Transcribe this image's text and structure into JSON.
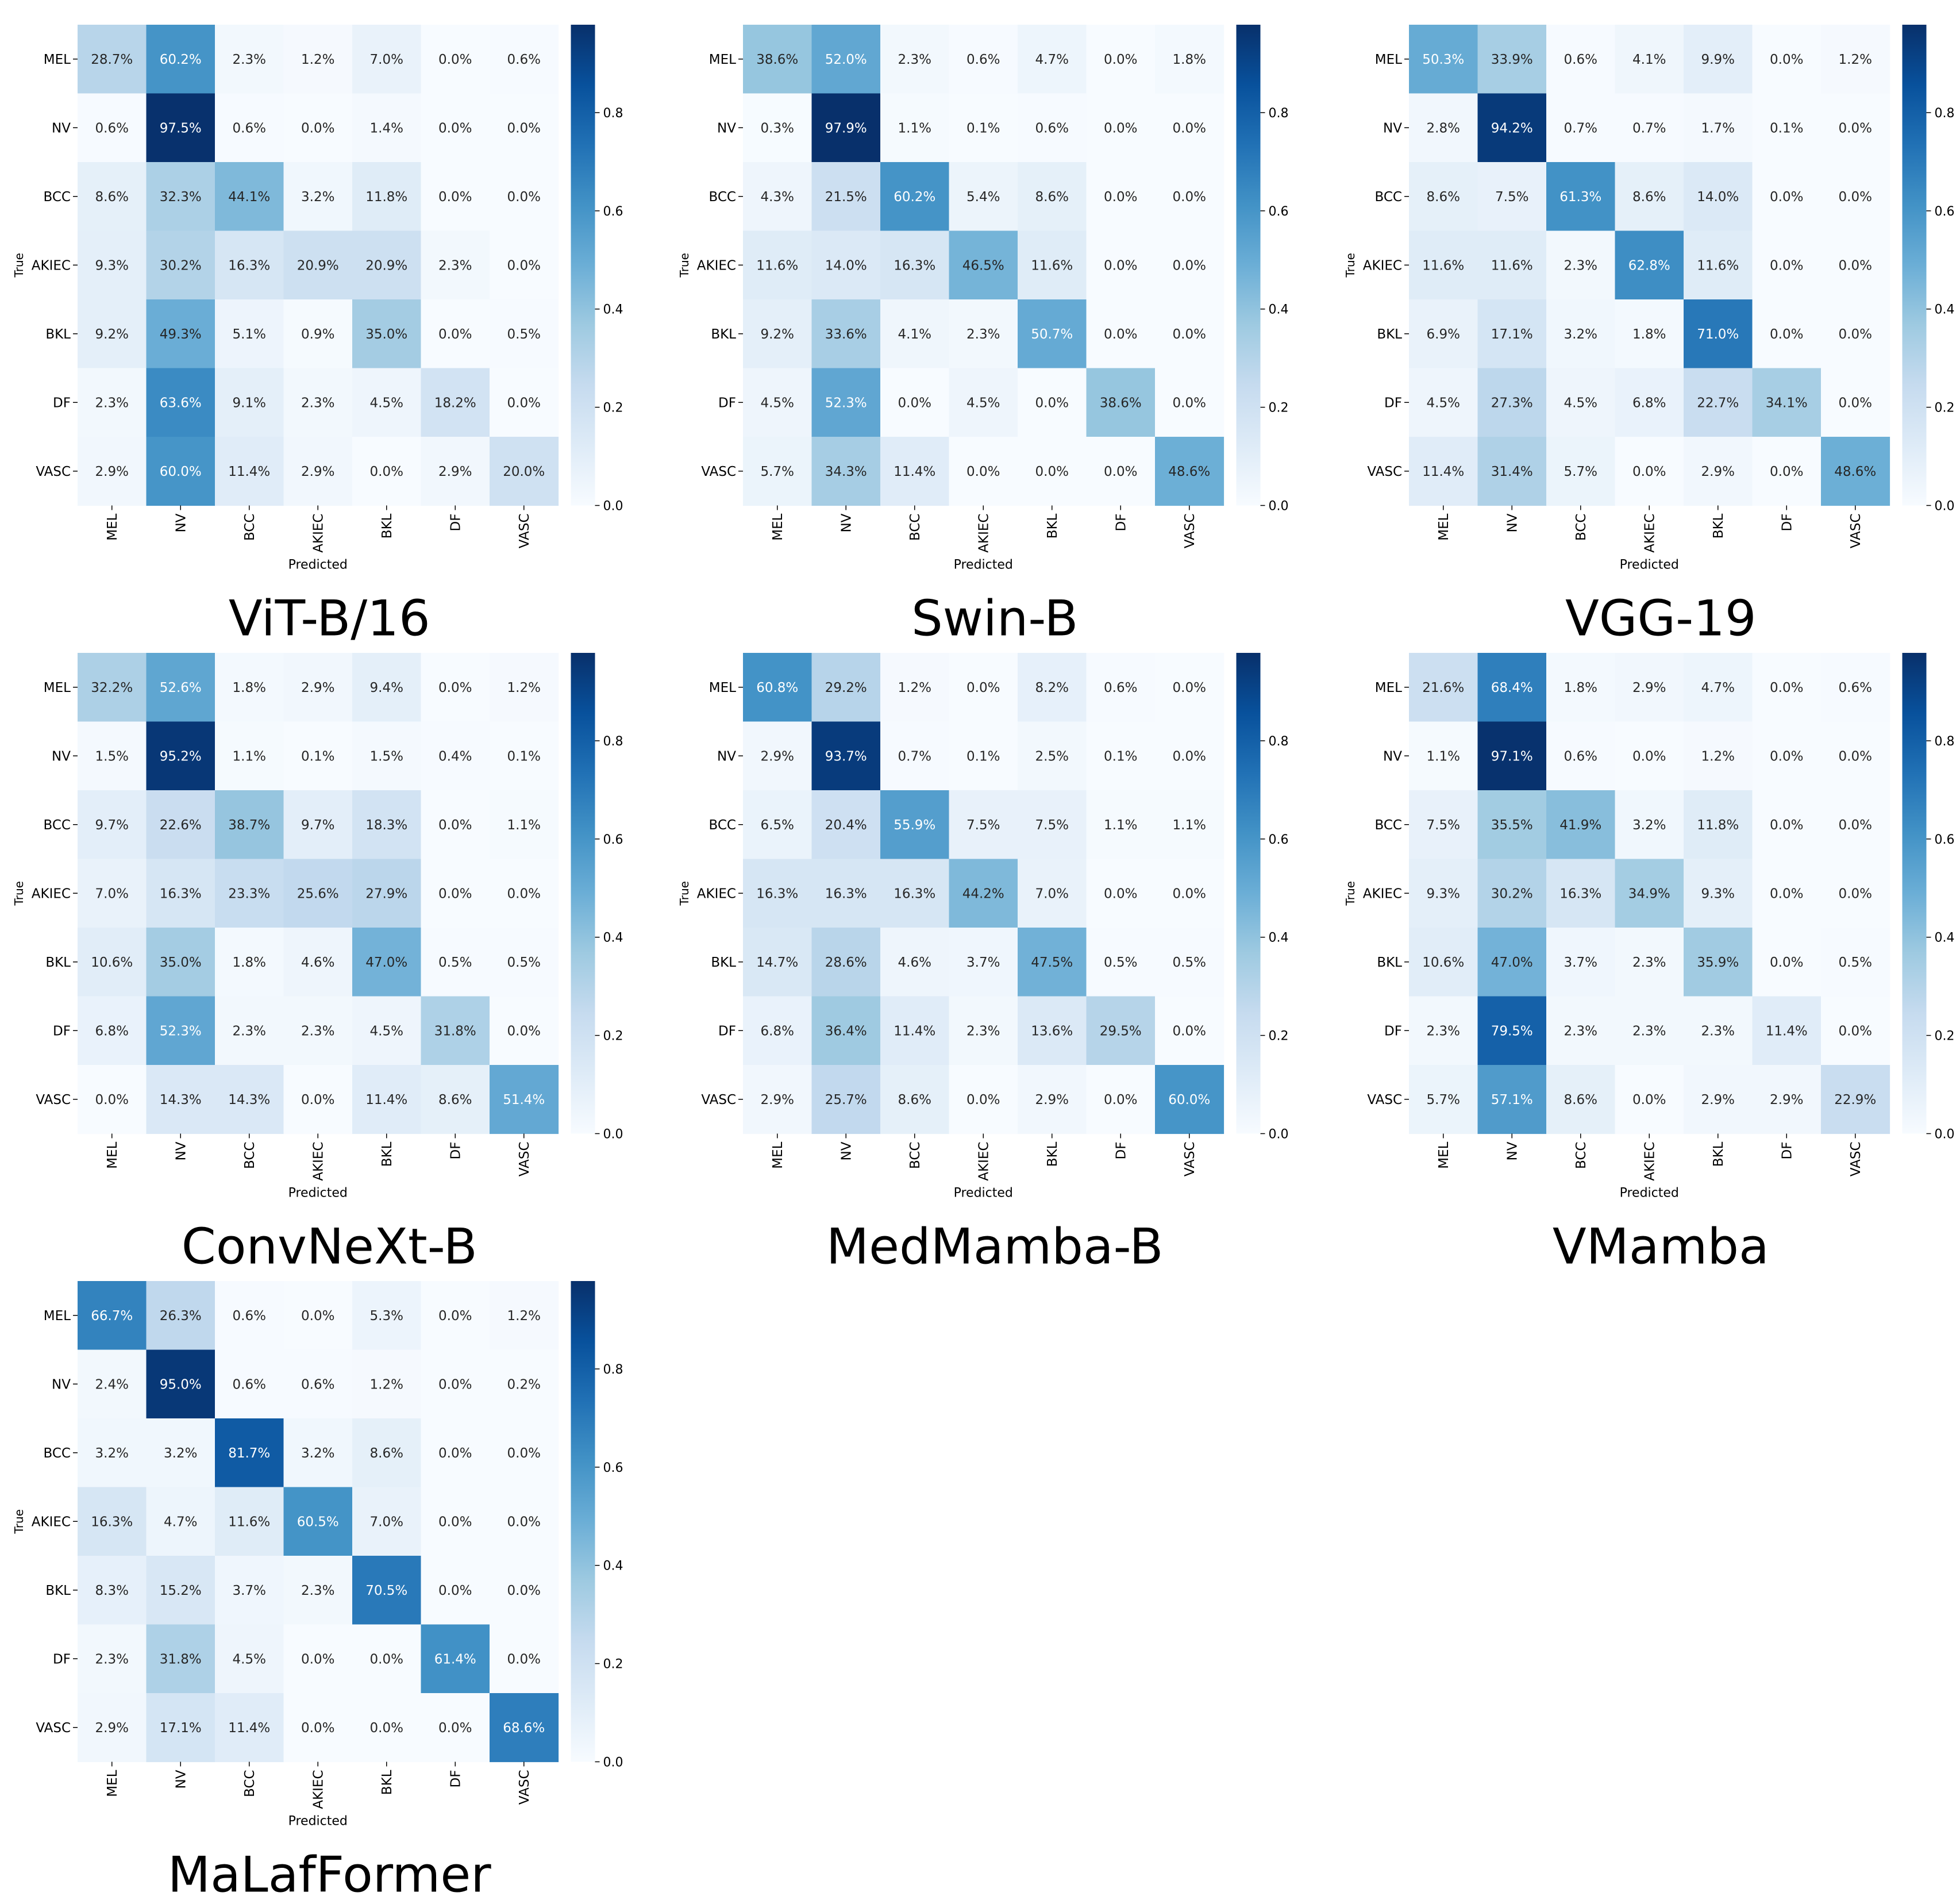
{
  "figure": {
    "cbar_ticks": [
      "0.0",
      "0.2",
      "0.4",
      "0.6",
      "0.8"
    ],
    "cbar_tick_values": [
      0.0,
      0.2,
      0.4,
      0.6,
      0.8
    ],
    "colormap": [
      "#f7fbff",
      "#deebf7",
      "#c6dbef",
      "#9ecae1",
      "#6baed6",
      "#4292c6",
      "#2171b5",
      "#08519c",
      "#08306b"
    ],
    "vmax": 0.979
  },
  "chart_data": [
    {
      "type": "heatmap",
      "title": "ViT-B/16",
      "xlabel": "Predicted",
      "ylabel": "True",
      "labels": [
        "MEL",
        "NV",
        "BCC",
        "AKIEC",
        "BKL",
        "DF",
        "VASC"
      ],
      "values": [
        [
          "28.7%",
          "60.2%",
          "2.3%",
          "1.2%",
          "7.0%",
          "0.0%",
          "0.6%"
        ],
        [
          "0.6%",
          "97.5%",
          "0.6%",
          "0.0%",
          "1.4%",
          "0.0%",
          "0.0%"
        ],
        [
          "8.6%",
          "32.3%",
          "44.1%",
          "3.2%",
          "11.8%",
          "0.0%",
          "0.0%"
        ],
        [
          "9.3%",
          "30.2%",
          "16.3%",
          "20.9%",
          "20.9%",
          "2.3%",
          "0.0%"
        ],
        [
          "9.2%",
          "49.3%",
          "5.1%",
          "0.9%",
          "35.0%",
          "0.0%",
          "0.5%"
        ],
        [
          "2.3%",
          "63.6%",
          "9.1%",
          "2.3%",
          "4.5%",
          "18.2%",
          "0.0%"
        ],
        [
          "2.9%",
          "60.0%",
          "11.4%",
          "2.9%",
          "0.0%",
          "2.9%",
          "20.0%"
        ]
      ]
    },
    {
      "type": "heatmap",
      "title": "Swin-B",
      "xlabel": "Predicted",
      "ylabel": "True",
      "labels": [
        "MEL",
        "NV",
        "BCC",
        "AKIEC",
        "BKL",
        "DF",
        "VASC"
      ],
      "values": [
        [
          "38.6%",
          "52.0%",
          "2.3%",
          "0.6%",
          "4.7%",
          "0.0%",
          "1.8%"
        ],
        [
          "0.3%",
          "97.9%",
          "1.1%",
          "0.1%",
          "0.6%",
          "0.0%",
          "0.0%"
        ],
        [
          "4.3%",
          "21.5%",
          "60.2%",
          "5.4%",
          "8.6%",
          "0.0%",
          "0.0%"
        ],
        [
          "11.6%",
          "14.0%",
          "16.3%",
          "46.5%",
          "11.6%",
          "0.0%",
          "0.0%"
        ],
        [
          "9.2%",
          "33.6%",
          "4.1%",
          "2.3%",
          "50.7%",
          "0.0%",
          "0.0%"
        ],
        [
          "4.5%",
          "52.3%",
          "0.0%",
          "4.5%",
          "0.0%",
          "38.6%",
          "0.0%"
        ],
        [
          "5.7%",
          "34.3%",
          "11.4%",
          "0.0%",
          "0.0%",
          "0.0%",
          "48.6%"
        ]
      ]
    },
    {
      "type": "heatmap",
      "title": "VGG-19",
      "xlabel": "Predicted",
      "ylabel": "True",
      "labels": [
        "MEL",
        "NV",
        "BCC",
        "AKIEC",
        "BKL",
        "DF",
        "VASC"
      ],
      "values": [
        [
          "50.3%",
          "33.9%",
          "0.6%",
          "4.1%",
          "9.9%",
          "0.0%",
          "1.2%"
        ],
        [
          "2.8%",
          "94.2%",
          "0.7%",
          "0.7%",
          "1.7%",
          "0.1%",
          "0.0%"
        ],
        [
          "8.6%",
          "7.5%",
          "61.3%",
          "8.6%",
          "14.0%",
          "0.0%",
          "0.0%"
        ],
        [
          "11.6%",
          "11.6%",
          "2.3%",
          "62.8%",
          "11.6%",
          "0.0%",
          "0.0%"
        ],
        [
          "6.9%",
          "17.1%",
          "3.2%",
          "1.8%",
          "71.0%",
          "0.0%",
          "0.0%"
        ],
        [
          "4.5%",
          "27.3%",
          "4.5%",
          "6.8%",
          "22.7%",
          "34.1%",
          "0.0%"
        ],
        [
          "11.4%",
          "31.4%",
          "5.7%",
          "0.0%",
          "2.9%",
          "0.0%",
          "48.6%"
        ]
      ]
    },
    {
      "type": "heatmap",
      "title": "ConvNeXt-B",
      "xlabel": "Predicted",
      "ylabel": "True",
      "labels": [
        "MEL",
        "NV",
        "BCC",
        "AKIEC",
        "BKL",
        "DF",
        "VASC"
      ],
      "values": [
        [
          "32.2%",
          "52.6%",
          "1.8%",
          "2.9%",
          "9.4%",
          "0.0%",
          "1.2%"
        ],
        [
          "1.5%",
          "95.2%",
          "1.1%",
          "0.1%",
          "1.5%",
          "0.4%",
          "0.1%"
        ],
        [
          "9.7%",
          "22.6%",
          "38.7%",
          "9.7%",
          "18.3%",
          "0.0%",
          "1.1%"
        ],
        [
          "7.0%",
          "16.3%",
          "23.3%",
          "25.6%",
          "27.9%",
          "0.0%",
          "0.0%"
        ],
        [
          "10.6%",
          "35.0%",
          "1.8%",
          "4.6%",
          "47.0%",
          "0.5%",
          "0.5%"
        ],
        [
          "6.8%",
          "52.3%",
          "2.3%",
          "2.3%",
          "4.5%",
          "31.8%",
          "0.0%"
        ],
        [
          "0.0%",
          "14.3%",
          "14.3%",
          "0.0%",
          "11.4%",
          "8.6%",
          "51.4%"
        ]
      ]
    },
    {
      "type": "heatmap",
      "title": "MedMamba-B",
      "xlabel": "Predicted",
      "ylabel": "True",
      "labels": [
        "MEL",
        "NV",
        "BCC",
        "AKIEC",
        "BKL",
        "DF",
        "VASC"
      ],
      "values": [
        [
          "60.8%",
          "29.2%",
          "1.2%",
          "0.0%",
          "8.2%",
          "0.6%",
          "0.0%"
        ],
        [
          "2.9%",
          "93.7%",
          "0.7%",
          "0.1%",
          "2.5%",
          "0.1%",
          "0.0%"
        ],
        [
          "6.5%",
          "20.4%",
          "55.9%",
          "7.5%",
          "7.5%",
          "1.1%",
          "1.1%"
        ],
        [
          "16.3%",
          "16.3%",
          "16.3%",
          "44.2%",
          "7.0%",
          "0.0%",
          "0.0%"
        ],
        [
          "14.7%",
          "28.6%",
          "4.6%",
          "3.7%",
          "47.5%",
          "0.5%",
          "0.5%"
        ],
        [
          "6.8%",
          "36.4%",
          "11.4%",
          "2.3%",
          "13.6%",
          "29.5%",
          "0.0%"
        ],
        [
          "2.9%",
          "25.7%",
          "8.6%",
          "0.0%",
          "2.9%",
          "0.0%",
          "60.0%"
        ]
      ]
    },
    {
      "type": "heatmap",
      "title": "VMamba",
      "xlabel": "Predicted",
      "ylabel": "True",
      "labels": [
        "MEL",
        "NV",
        "BCC",
        "AKIEC",
        "BKL",
        "DF",
        "VASC"
      ],
      "values": [
        [
          "21.6%",
          "68.4%",
          "1.8%",
          "2.9%",
          "4.7%",
          "0.0%",
          "0.6%"
        ],
        [
          "1.1%",
          "97.1%",
          "0.6%",
          "0.0%",
          "1.2%",
          "0.0%",
          "0.0%"
        ],
        [
          "7.5%",
          "35.5%",
          "41.9%",
          "3.2%",
          "11.8%",
          "0.0%",
          "0.0%"
        ],
        [
          "9.3%",
          "30.2%",
          "16.3%",
          "34.9%",
          "9.3%",
          "0.0%",
          "0.0%"
        ],
        [
          "10.6%",
          "47.0%",
          "3.7%",
          "2.3%",
          "35.9%",
          "0.0%",
          "0.5%"
        ],
        [
          "2.3%",
          "79.5%",
          "2.3%",
          "2.3%",
          "2.3%",
          "11.4%",
          "0.0%"
        ],
        [
          "5.7%",
          "57.1%",
          "8.6%",
          "0.0%",
          "2.9%",
          "2.9%",
          "22.9%"
        ]
      ]
    },
    {
      "type": "heatmap",
      "title": "MaLafFormer",
      "xlabel": "Predicted",
      "ylabel": "True",
      "labels": [
        "MEL",
        "NV",
        "BCC",
        "AKIEC",
        "BKL",
        "DF",
        "VASC"
      ],
      "values": [
        [
          "66.7%",
          "26.3%",
          "0.6%",
          "0.0%",
          "5.3%",
          "0.0%",
          "1.2%"
        ],
        [
          "2.4%",
          "95.0%",
          "0.6%",
          "0.6%",
          "1.2%",
          "0.0%",
          "0.2%"
        ],
        [
          "3.2%",
          "3.2%",
          "81.7%",
          "3.2%",
          "8.6%",
          "0.0%",
          "0.0%"
        ],
        [
          "16.3%",
          "4.7%",
          "11.6%",
          "60.5%",
          "7.0%",
          "0.0%",
          "0.0%"
        ],
        [
          "8.3%",
          "15.2%",
          "3.7%",
          "2.3%",
          "70.5%",
          "0.0%",
          "0.0%"
        ],
        [
          "2.3%",
          "31.8%",
          "4.5%",
          "0.0%",
          "0.0%",
          "61.4%",
          "0.0%"
        ],
        [
          "2.9%",
          "17.1%",
          "11.4%",
          "0.0%",
          "0.0%",
          "0.0%",
          "68.6%"
        ]
      ]
    }
  ]
}
